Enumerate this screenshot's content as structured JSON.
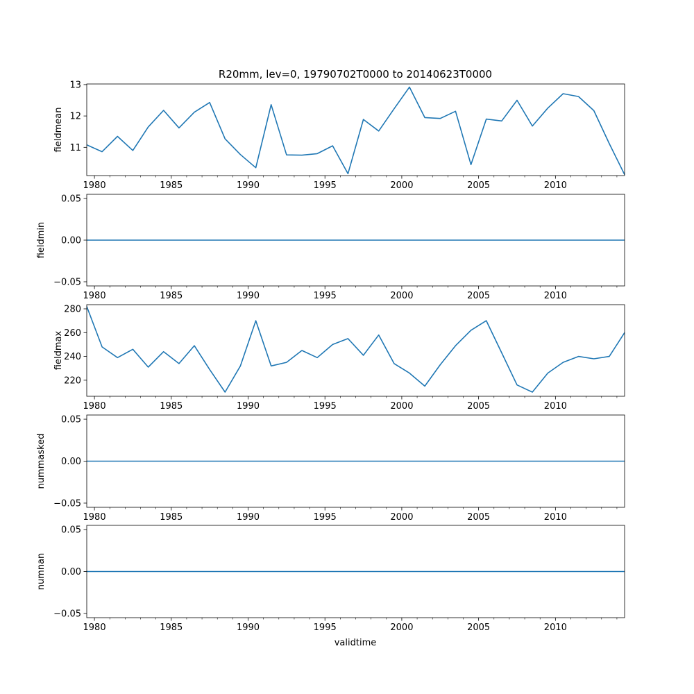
{
  "figure": {
    "title": "R20mm, lev=0, 19790702T0000 to 20140623T0000",
    "xlabel": "validtime",
    "line_color": "#1f77b4"
  },
  "chart_data": [
    {
      "type": "line",
      "ylabel": "fieldmean",
      "xlim": [
        1979.5,
        2014.5
      ],
      "ylim": [
        10.1,
        13.02
      ],
      "x_ticks": [
        1980,
        1985,
        1990,
        1995,
        2000,
        2005,
        2010
      ],
      "y_ticks": [
        11,
        12,
        13
      ],
      "y_tick_labels": [
        "11",
        "12",
        "13"
      ],
      "x": [
        1979.5,
        1980.5,
        1981.5,
        1982.5,
        1983.5,
        1984.5,
        1985.5,
        1986.5,
        1987.5,
        1988.5,
        1989.5,
        1990.5,
        1991.5,
        1992.5,
        1993.5,
        1994.5,
        1995.5,
        1996.5,
        1997.5,
        1998.5,
        1999.5,
        2000.5,
        2001.5,
        2002.5,
        2003.5,
        2004.5,
        2005.5,
        2006.5,
        2007.5,
        2008.5,
        2009.5,
        2010.5,
        2011.5,
        2012.5,
        2013.5,
        2014.5
      ],
      "values": [
        11.08,
        10.86,
        11.35,
        10.9,
        11.65,
        12.18,
        11.62,
        12.12,
        12.43,
        11.27,
        10.77,
        10.35,
        12.36,
        10.76,
        10.75,
        10.8,
        11.05,
        10.16,
        11.89,
        11.52,
        12.23,
        12.92,
        11.95,
        11.92,
        12.15,
        10.45,
        11.9,
        11.84,
        12.5,
        11.68,
        12.25,
        12.71,
        12.62,
        12.17,
        11.12,
        10.13
      ]
    },
    {
      "type": "line",
      "ylabel": "fieldmin",
      "xlim": [
        1979.5,
        2014.5
      ],
      "ylim": [
        -0.055,
        0.055
      ],
      "x_ticks": [
        1980,
        1985,
        1990,
        1995,
        2000,
        2005,
        2010
      ],
      "y_ticks": [
        0.05,
        0.0,
        -0.05
      ],
      "y_tick_labels": [
        "0.05",
        "0.00",
        "−0.05"
      ],
      "x": [
        1979.5,
        2014.5
      ],
      "values": [
        0,
        0
      ]
    },
    {
      "type": "line",
      "ylabel": "fieldmax",
      "xlim": [
        1979.5,
        2014.5
      ],
      "ylim": [
        206.5,
        283.5
      ],
      "x_ticks": [
        1980,
        1985,
        1990,
        1995,
        2000,
        2005,
        2010
      ],
      "y_ticks": [
        220,
        240,
        260,
        280
      ],
      "y_tick_labels": [
        "220",
        "240",
        "260",
        "280"
      ],
      "x": [
        1979.5,
        1980.5,
        1981.5,
        1982.5,
        1983.5,
        1984.5,
        1985.5,
        1986.5,
        1987.5,
        1988.5,
        1989.5,
        1990.5,
        1991.5,
        1992.5,
        1993.5,
        1994.5,
        1995.5,
        1996.5,
        1997.5,
        1998.5,
        1999.5,
        2000.5,
        2001.5,
        2002.5,
        2003.5,
        2004.5,
        2005.5,
        2006.5,
        2007.5,
        2008.5,
        2009.5,
        2010.5,
        2011.5,
        2012.5,
        2013.5,
        2014.5
      ],
      "values": [
        282,
        248,
        239,
        246,
        231,
        244,
        234,
        249,
        229,
        210,
        232,
        270,
        232,
        235,
        245,
        239,
        250,
        255,
        241,
        258,
        234,
        226,
        215,
        233,
        249,
        262,
        270,
        243,
        216,
        210,
        226,
        235,
        240,
        238,
        240,
        260
      ]
    },
    {
      "type": "line",
      "ylabel": "nummasked",
      "xlim": [
        1979.5,
        2014.5
      ],
      "ylim": [
        -0.055,
        0.055
      ],
      "x_ticks": [
        1980,
        1985,
        1990,
        1995,
        2000,
        2005,
        2010
      ],
      "y_ticks": [
        0.05,
        0.0,
        -0.05
      ],
      "y_tick_labels": [
        "0.05",
        "0.00",
        "−0.05"
      ],
      "x": [
        1979.5,
        2014.5
      ],
      "values": [
        0,
        0
      ]
    },
    {
      "type": "line",
      "ylabel": "numnan",
      "xlim": [
        1979.5,
        2014.5
      ],
      "ylim": [
        -0.055,
        0.055
      ],
      "x_ticks": [
        1980,
        1985,
        1990,
        1995,
        2000,
        2005,
        2010
      ],
      "y_ticks": [
        0.05,
        0.0,
        -0.05
      ],
      "y_tick_labels": [
        "0.05",
        "0.00",
        "−0.05"
      ],
      "x": [
        1979.5,
        2014.5
      ],
      "values": [
        0,
        0
      ]
    }
  ]
}
